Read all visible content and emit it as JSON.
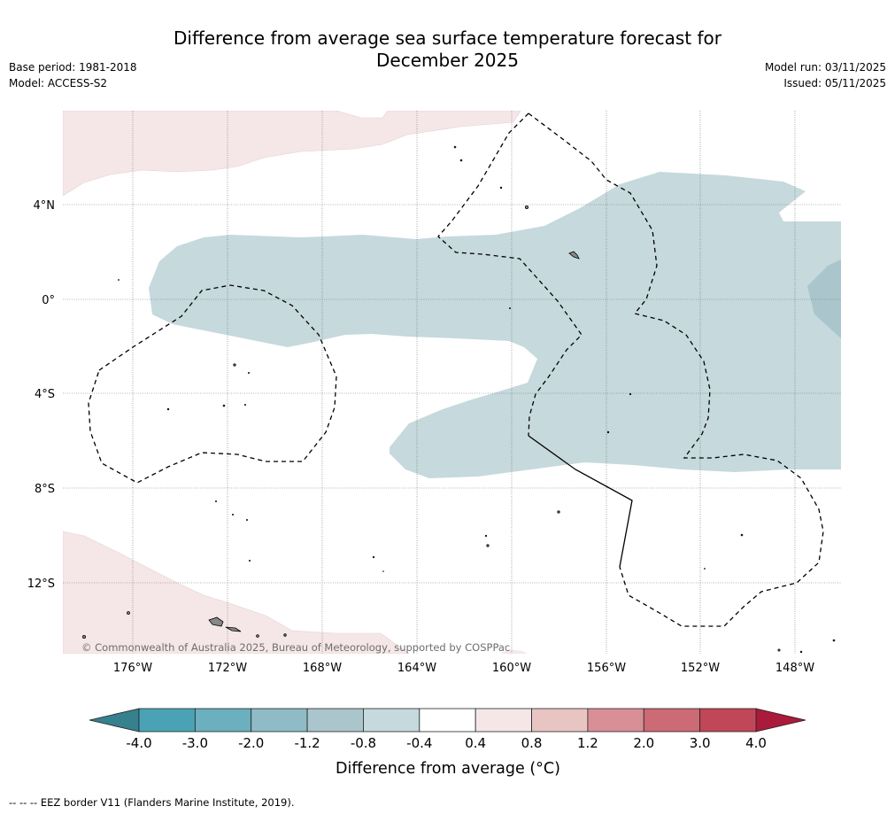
{
  "header": {
    "title_line1": "Difference from average sea surface temperature forecast for",
    "title_line2": "December 2025",
    "base_period": "Base period: 1981-2018",
    "model": "Model: ACCESS-S2",
    "model_run": "Model run: 03/11/2025",
    "issued": "Issued: 05/11/2025"
  },
  "map": {
    "lat_labels": [
      "4°N",
      "0°",
      "4°S",
      "8°S",
      "12°S"
    ],
    "lon_labels": [
      "176°W",
      "172°W",
      "168°W",
      "164°W",
      "160°W",
      "156°W",
      "152°W",
      "148°W"
    ],
    "copyright": "© Commonwealth of Australia 2025, Bureau of Meteorology, supported by COSPPac"
  },
  "colorbar": {
    "ticks": [
      "-4.0",
      "-3.0",
      "-2.0",
      "-1.2",
      "-0.8",
      "-0.4",
      "0.4",
      "0.8",
      "1.2",
      "2.0",
      "3.0",
      "4.0"
    ],
    "colors": [
      "#4aa3b4",
      "#6cafbe",
      "#8ebbc6",
      "#aac6cc",
      "#c6d9dd",
      "#ffffff",
      "#f5e7e8",
      "#e8c5c2",
      "#d98f96",
      "#cc6a75",
      "#c04757"
    ],
    "under_color": "#37808e",
    "over_color": "#aa1a3a",
    "label": "Difference from average (°C)"
  },
  "legend": {
    "eez_note": "--  --  -- EEZ border V11 (Flanders Marine Institute, 2019)."
  }
}
